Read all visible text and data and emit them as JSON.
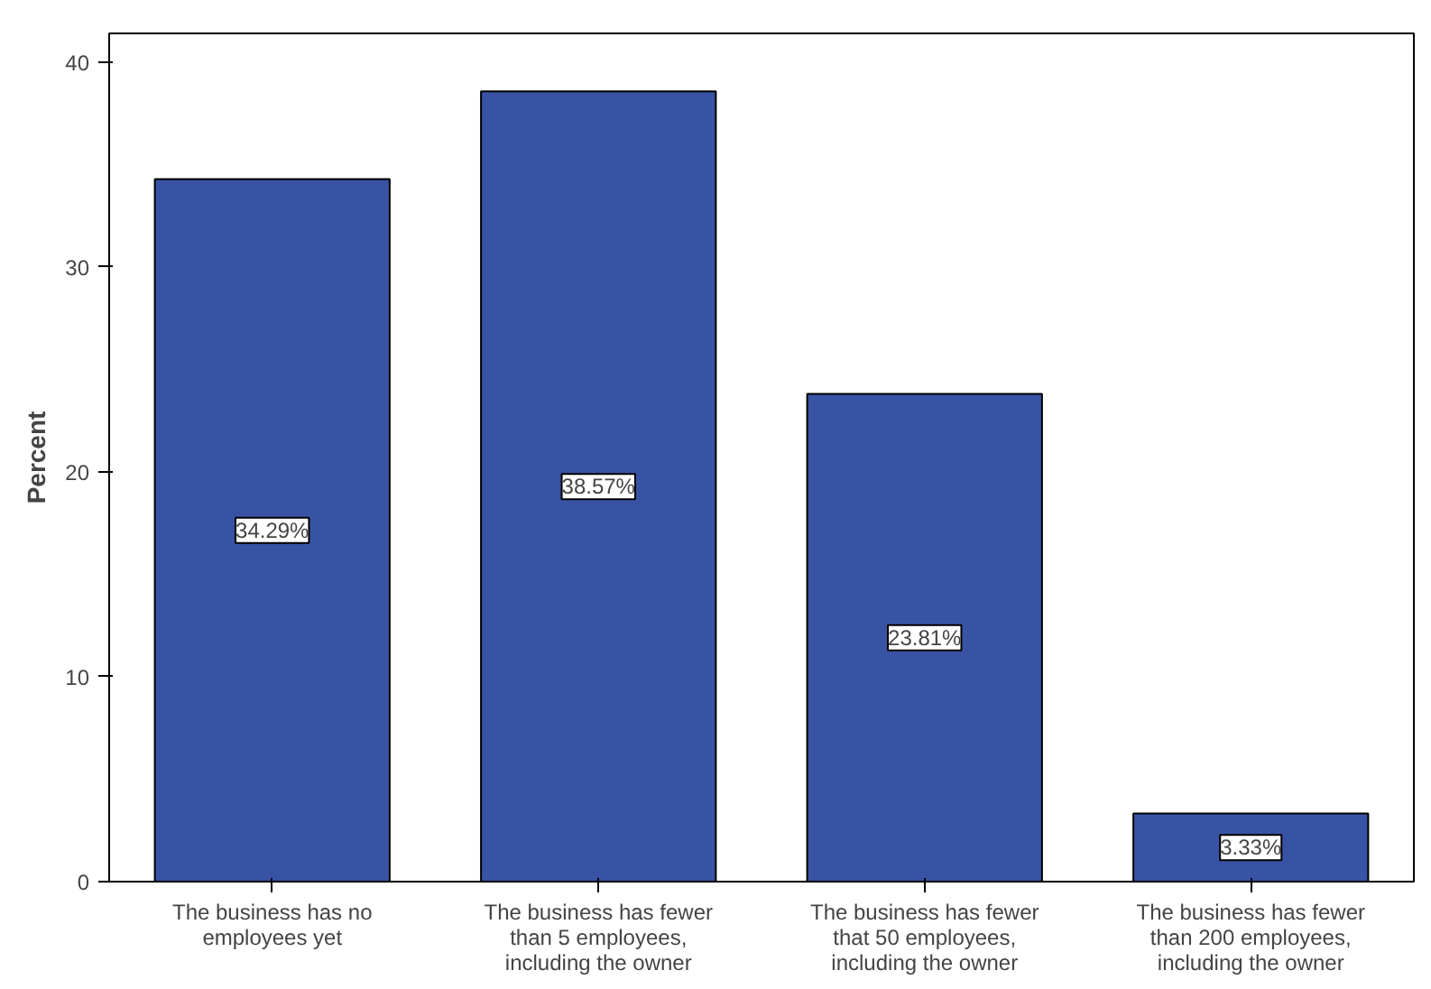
{
  "chart_data": {
    "type": "bar",
    "ylabel": "Percent",
    "categories": [
      "The business has no\nemployees yet",
      "The business has fewer\nthan 5 employees,\nincluding the owner",
      "The business has fewer\nthat 50 employees,\nincluding the owner",
      "The business has fewer\nthan 200 employees,\nincluding the owner"
    ],
    "values": [
      34.29,
      38.57,
      23.81,
      3.33
    ],
    "value_labels": [
      "34.29%",
      "38.57%",
      "23.81%",
      "3.33%"
    ],
    "color": "#3953a4",
    "ylim": [
      0,
      41.4
    ],
    "yticks": [
      0,
      10,
      20,
      30,
      40
    ],
    "grid": false
  }
}
